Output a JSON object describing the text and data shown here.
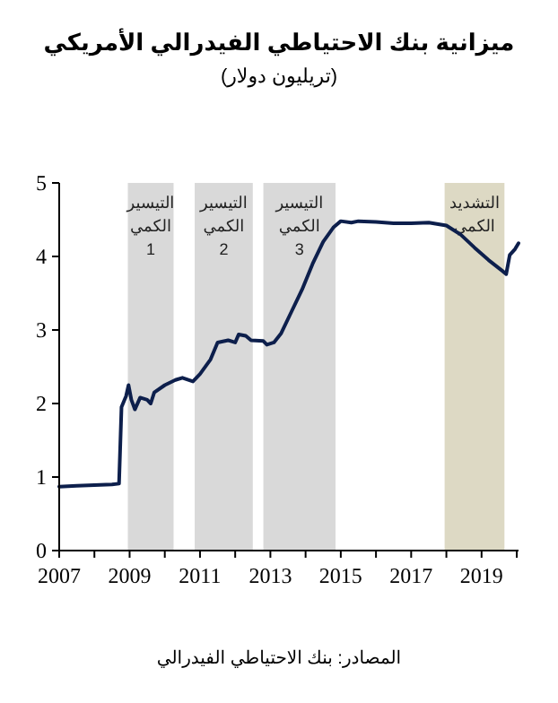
{
  "chart_data": {
    "type": "line",
    "title": "ميزانية بنك الاحتياطي الفيدرالي الأمريكي",
    "subtitle": "(تريليون دولار)",
    "annotations": [
      "المصادر: بنك الاحتياطي الفيدرالي"
    ],
    "series": [
      {
        "color": "#0d1f4c",
        "x": [
          2007.0,
          2007.5,
          2008.0,
          2008.5,
          2008.7,
          2008.77,
          2008.9,
          2008.97,
          2009.05,
          2009.15,
          2009.3,
          2009.5,
          2009.6,
          2009.7,
          2010.0,
          2010.3,
          2010.5,
          2010.8,
          2011.0,
          2011.3,
          2011.5,
          2011.8,
          2012.0,
          2012.1,
          2012.3,
          2012.45,
          2012.8,
          2012.9,
          2013.1,
          2013.3,
          2013.6,
          2013.9,
          2014.2,
          2014.5,
          2014.8,
          2015.0,
          2015.3,
          2015.5,
          2016.0,
          2016.5,
          2017.0,
          2017.5,
          2018.0,
          2018.4,
          2018.8,
          2019.2,
          2019.6,
          2019.7,
          2019.8,
          2019.95,
          2020.05
        ],
        "values": [
          0.87,
          0.88,
          0.89,
          0.9,
          0.91,
          1.95,
          2.1,
          2.25,
          2.05,
          1.92,
          2.08,
          2.05,
          2.0,
          2.15,
          2.25,
          2.32,
          2.35,
          2.3,
          2.4,
          2.6,
          2.83,
          2.86,
          2.83,
          2.94,
          2.92,
          2.86,
          2.85,
          2.8,
          2.83,
          2.95,
          3.25,
          3.55,
          3.9,
          4.2,
          4.4,
          4.48,
          4.46,
          4.48,
          4.47,
          4.45,
          4.45,
          4.46,
          4.42,
          4.3,
          4.12,
          3.95,
          3.8,
          3.76,
          4.02,
          4.1,
          4.18
        ]
      }
    ],
    "xlim": [
      2007,
      2020.05
    ],
    "ylim": [
      0,
      5
    ],
    "xticks": [
      2007,
      {
        "value": 2008,
        "label": null
      },
      2009,
      {
        "value": 2010,
        "label": null
      },
      2011,
      {
        "value": 2012,
        "label": null
      },
      2013,
      {
        "value": 2014,
        "label": null
      },
      2015,
      {
        "value": 2016,
        "label": null
      },
      2017,
      {
        "value": 2018,
        "label": null
      },
      2019,
      {
        "value": 2020,
        "label": null
      }
    ],
    "yticks": [
      0,
      1,
      2,
      3,
      4,
      5
    ],
    "bands": [
      {
        "axis": "x",
        "from": 2008.95,
        "to": 2010.25,
        "label": "التيسير\nالكمي\n1",
        "color": "#d9d9d9"
      },
      {
        "axis": "x",
        "from": 2010.85,
        "to": 2012.5,
        "label": "التيسير\nالكمي\n2",
        "color": "#d9d9d9"
      },
      {
        "axis": "x",
        "from": 2012.8,
        "to": 2014.85,
        "label": "التيسير\nالكمي\n3",
        "color": "#d9d9d9"
      },
      {
        "axis": "x",
        "from": 2017.95,
        "to": 2019.65,
        "label": "التشديد\nالكمي",
        "color": "#ddd9c4"
      }
    ],
    "grid": false
  }
}
